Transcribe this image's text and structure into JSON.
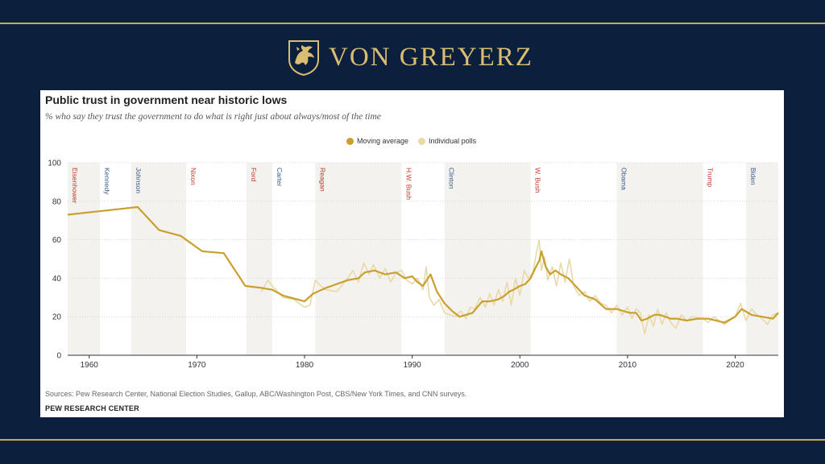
{
  "brand": {
    "name": "VON GREYERZ",
    "logo": "griffin-crest"
  },
  "colors": {
    "background": "#0c1f3d",
    "gold": "#c9a85a",
    "moving_average": "#c9a030",
    "individual_polls": "#e8d9a6",
    "republican": "#c0392b",
    "democrat": "#3a5a8c",
    "band": "#f4f2ee"
  },
  "chart_data": {
    "type": "line",
    "title": "Public trust in government near historic lows",
    "subtitle": "% who say they trust the government to do what is right just about always/most of the time",
    "legend": [
      "Moving average",
      "Individual polls"
    ],
    "legend_position": "top-center",
    "xlim": [
      1958,
      2024
    ],
    "ylim": [
      0,
      100
    ],
    "x_ticks": [
      1960,
      1970,
      1980,
      1990,
      2000,
      2010,
      2020
    ],
    "y_ticks": [
      0,
      20,
      40,
      60,
      80,
      100
    ],
    "grid": "horizontal-dotted",
    "presidents": [
      {
        "name": "Eisenhower",
        "start": 1958,
        "end": 1961,
        "party": "R",
        "shaded": true
      },
      {
        "name": "Kennedy",
        "start": 1961,
        "end": 1963.9,
        "party": "D",
        "shaded": false
      },
      {
        "name": "Johnson",
        "start": 1963.9,
        "end": 1969,
        "party": "D",
        "shaded": true
      },
      {
        "name": "Nixon",
        "start": 1969,
        "end": 1974.6,
        "party": "R",
        "shaded": false
      },
      {
        "name": "Ford",
        "start": 1974.6,
        "end": 1977,
        "party": "R",
        "shaded": true
      },
      {
        "name": "Carter",
        "start": 1977,
        "end": 1981,
        "party": "D",
        "shaded": false
      },
      {
        "name": "Reagan",
        "start": 1981,
        "end": 1989,
        "party": "R",
        "shaded": true
      },
      {
        "name": "H.W. Bush",
        "start": 1989,
        "end": 1993,
        "party": "R",
        "shaded": false
      },
      {
        "name": "Clinton",
        "start": 1993,
        "end": 2001,
        "party": "D",
        "shaded": true
      },
      {
        "name": "W. Bush",
        "start": 2001,
        "end": 2009,
        "party": "R",
        "shaded": false
      },
      {
        "name": "Obama",
        "start": 2009,
        "end": 2017,
        "party": "D",
        "shaded": true
      },
      {
        "name": "Trump",
        "start": 2017,
        "end": 2021,
        "party": "R",
        "shaded": false
      },
      {
        "name": "Biden",
        "start": 2021,
        "end": 2024,
        "party": "D",
        "shaded": true
      }
    ],
    "series": [
      {
        "name": "Moving average",
        "x": [
          1958,
          1964.5,
          1966.5,
          1968.5,
          1970.5,
          1972.5,
          1974.5,
          1976,
          1977,
          1978,
          1980,
          1980.8,
          1982,
          1984,
          1985,
          1985.6,
          1986.5,
          1987.5,
          1988.5,
          1989.3,
          1990,
          1990.5,
          1991,
          1991.7,
          1992.3,
          1993,
          1993.7,
          1994.4,
          1995,
          1995.6,
          1996.5,
          1997.2,
          1998,
          1998.6,
          1999,
          1999.4,
          2000,
          2000.5,
          2001,
          2001.5,
          2001.8,
          2002,
          2002.4,
          2002.8,
          2003.3,
          2003.8,
          2004.5,
          2005,
          2006,
          2007,
          2008,
          2009,
          2009.6,
          2010.2,
          2010.8,
          2011.3,
          2011.8,
          2012.5,
          2013,
          2014,
          2014.6,
          2015.5,
          2016.5,
          2017.5,
          2019,
          2020,
          2020.6,
          2021.5,
          2022.5,
          2023.5,
          2024
        ],
        "y": [
          73,
          77,
          65,
          62,
          54,
          53,
          36,
          35,
          34,
          31,
          28,
          32,
          35,
          39,
          40,
          43,
          44,
          42,
          43,
          40,
          41,
          38,
          36,
          42,
          33,
          27,
          23,
          20,
          21,
          22,
          28,
          28,
          29,
          31,
          33,
          34,
          36,
          37,
          40,
          46,
          49,
          54,
          46,
          42,
          44,
          42,
          40,
          37,
          31,
          29,
          24,
          24,
          23,
          22,
          22,
          18,
          19,
          21,
          21,
          19,
          19,
          18,
          19,
          19,
          17,
          20,
          24,
          21,
          20,
          19,
          22
        ]
      },
      {
        "name": "Individual polls",
        "x": [
          1976,
          1976.6,
          1977,
          1978,
          1979,
          1980,
          1980.5,
          1981,
          1981.5,
          1982,
          1983,
          1984,
          1984.5,
          1985,
          1985.5,
          1986,
          1986.4,
          1987,
          1987.5,
          1988,
          1988.5,
          1989,
          1989.5,
          1990,
          1990.5,
          1991,
          1991.3,
          1991.6,
          1992,
          1992.5,
          1993,
          1993.5,
          1994,
          1994.5,
          1995,
          1995.4,
          1995.8,
          1996.3,
          1996.8,
          1997.2,
          1997.6,
          1998,
          1998.4,
          1998.8,
          1999.2,
          1999.6,
          2000,
          2000.4,
          2000.8,
          2001.2,
          2001.6,
          2001.8,
          2002,
          2002.3,
          2002.6,
          2003,
          2003.4,
          2003.8,
          2004.2,
          2004.6,
          2005,
          2005.5,
          2006,
          2006.5,
          2007,
          2007.5,
          2008,
          2008.5,
          2009,
          2009.5,
          2010,
          2010.4,
          2010.8,
          2011.2,
          2011.6,
          2012,
          2012.4,
          2012.8,
          2013.2,
          2013.6,
          2014,
          2014.5,
          2015,
          2015.5,
          2016,
          2017,
          2017.5,
          2018,
          2019,
          2020,
          2020.5,
          2021,
          2021.5,
          2022,
          2022.5,
          2023,
          2023.5,
          2024
        ],
        "y": [
          33,
          39,
          36,
          30,
          29,
          25,
          26,
          39,
          36,
          34,
          33,
          40,
          44,
          38,
          48,
          42,
          47,
          40,
          45,
          38,
          43,
          44,
          39,
          37,
          40,
          34,
          46,
          30,
          26,
          29,
          22,
          21,
          20,
          23,
          19,
          25,
          24,
          30,
          25,
          32,
          26,
          34,
          28,
          38,
          26,
          40,
          31,
          44,
          40,
          43,
          55,
          60,
          44,
          51,
          39,
          46,
          36,
          48,
          38,
          50,
          36,
          31,
          33,
          28,
          31,
          27,
          26,
          22,
          26,
          21,
          25,
          19,
          24,
          22,
          11,
          21,
          15,
          24,
          16,
          22,
          17,
          14,
          21,
          18,
          20,
          19,
          17,
          20,
          16,
          20,
          27,
          18,
          24,
          21,
          19,
          16,
          21,
          22
        ]
      }
    ]
  },
  "sources": "Sources: Pew Research Center, National Election Studies, Gallup, ABC/Washington Post, CBS/New York Times, and CNN surveys.",
  "footer": "PEW RESEARCH CENTER"
}
